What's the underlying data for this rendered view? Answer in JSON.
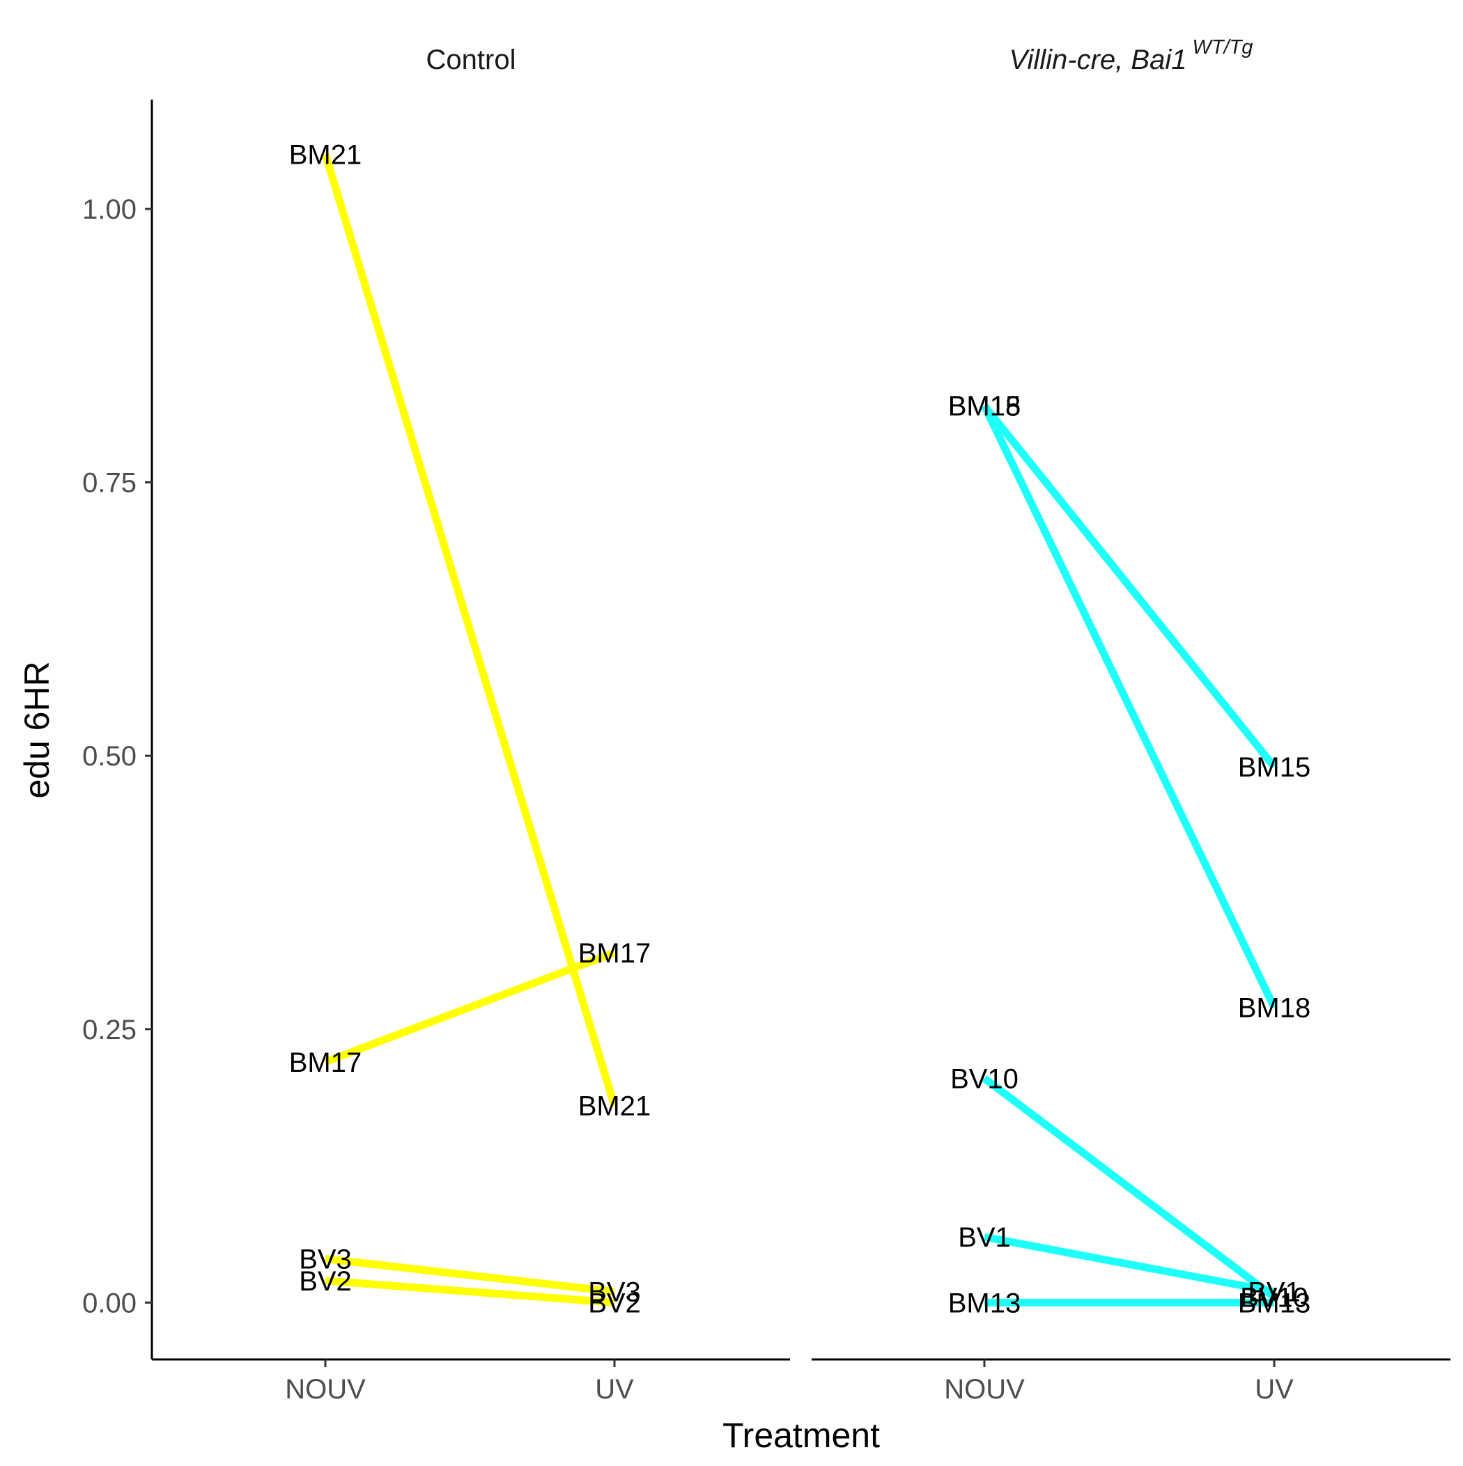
{
  "chart_data": {
    "type": "line",
    "xlabel": "Treatment",
    "ylabel": "edu 6HR",
    "categories": [
      "NOUV",
      "UV"
    ],
    "ylim": [
      -0.052,
      1.1
    ],
    "yticks": [
      0.0,
      0.25,
      0.5,
      0.75,
      1.0
    ],
    "ytick_labels": [
      "0.00",
      "0.25",
      "0.50",
      "0.75",
      "1.00"
    ],
    "grid": false,
    "legend": "none",
    "panels": [
      {
        "title": "Control",
        "color": "#ffff00",
        "series": [
          {
            "label": "BM21",
            "values": [
              1.05,
              0.18
            ]
          },
          {
            "label": "BM17",
            "values": [
              0.22,
              0.32
            ]
          },
          {
            "label": "BV3",
            "values": [
              0.04,
              0.01
            ]
          },
          {
            "label": "BV2",
            "values": [
              0.02,
              0.0
            ]
          }
        ]
      },
      {
        "title": "Villin-cre, Bai1",
        "title_superscript": "WT/Tg",
        "color": "#1ffffa",
        "series": [
          {
            "label": "BM15",
            "values": [
              0.82,
              0.49
            ]
          },
          {
            "label": "BM18",
            "values": [
              0.82,
              0.27
            ]
          },
          {
            "label": "BV10",
            "values": [
              0.205,
              0.005
            ]
          },
          {
            "label": "BV1",
            "values": [
              0.06,
              0.01
            ]
          },
          {
            "label": "BM13",
            "values": [
              0.0,
              0.0
            ]
          }
        ]
      }
    ]
  }
}
